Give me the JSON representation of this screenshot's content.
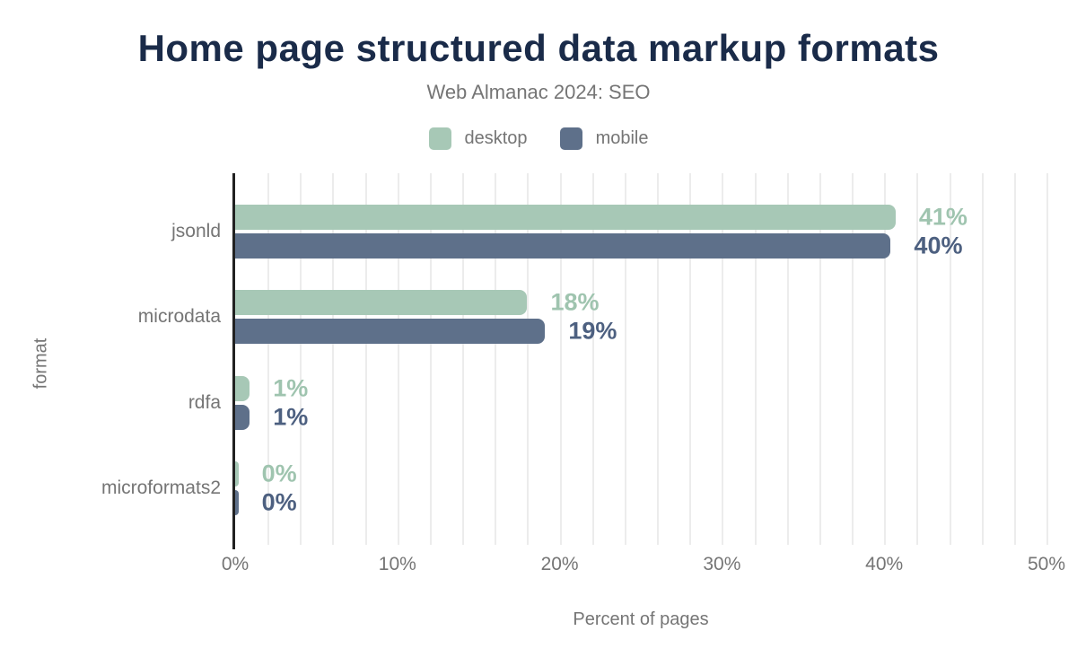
{
  "title": "Home page structured data markup formats",
  "subtitle": "Web Almanac 2024: SEO",
  "legend": {
    "items": [
      {
        "label": "desktop",
        "color": "#a7c8b6"
      },
      {
        "label": "mobile",
        "color": "#5e708a"
      }
    ]
  },
  "chart_data": {
    "type": "bar",
    "orientation": "horizontal",
    "title": "Home page structured data markup formats",
    "subtitle": "Web Almanac 2024: SEO",
    "categories": [
      "jsonld",
      "microdata",
      "rdfa",
      "microformats2"
    ],
    "series": [
      {
        "name": "desktop",
        "values": [
          40.7,
          18.0,
          0.9,
          0.2
        ],
        "labels": [
          "41%",
          "18%",
          "1%",
          "0%"
        ],
        "bar_color": "#a7c8b6",
        "label_color": "#9fc4af"
      },
      {
        "name": "mobile",
        "values": [
          40.4,
          19.1,
          0.9,
          0.2
        ],
        "labels": [
          "40%",
          "19%",
          "1%",
          "0%"
        ],
        "bar_color": "#5e708a",
        "label_color": "#4d6080"
      }
    ],
    "xlabel": "Percent of pages",
    "ylabel": "format",
    "xlim": [
      0,
      50
    ],
    "x_ticks": [
      {
        "value": 0,
        "label": "0%"
      },
      {
        "value": 10,
        "label": "10%"
      },
      {
        "value": 20,
        "label": "20%"
      },
      {
        "value": 30,
        "label": "30%"
      },
      {
        "value": 40,
        "label": "40%"
      },
      {
        "value": 50,
        "label": "50%"
      }
    ],
    "grid": {
      "minor_step_pct": 2,
      "color": "#ececec",
      "vertical": true
    },
    "legend_position": "top"
  }
}
